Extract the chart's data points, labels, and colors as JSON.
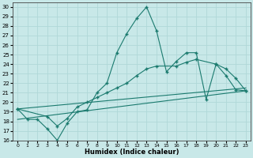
{
  "xlabel": "Humidex (Indice chaleur)",
  "xlim": [
    -0.5,
    23.5
  ],
  "ylim": [
    16,
    30.5
  ],
  "xticks": [
    0,
    1,
    2,
    3,
    4,
    5,
    6,
    7,
    8,
    9,
    10,
    11,
    12,
    13,
    14,
    15,
    16,
    17,
    18,
    19,
    20,
    21,
    22,
    23
  ],
  "yticks": [
    16,
    17,
    18,
    19,
    20,
    21,
    22,
    23,
    24,
    25,
    26,
    27,
    28,
    29,
    30
  ],
  "bg_color": "#c8e8e8",
  "line_color": "#1a7a6e",
  "grid_color": "#b0d8d8",
  "curve1_x": [
    0,
    1,
    2,
    3,
    4,
    5,
    6,
    7,
    8,
    9,
    10,
    11,
    12,
    13,
    14,
    15,
    16,
    17,
    18,
    19,
    20,
    21,
    22,
    23
  ],
  "curve1_y": [
    19.3,
    18.2,
    18.2,
    17.2,
    16.0,
    17.8,
    19.0,
    19.2,
    21.0,
    22.0,
    25.2,
    27.2,
    28.8,
    30.0,
    27.5,
    23.2,
    24.3,
    25.2,
    25.2,
    20.3,
    24.0,
    22.8,
    21.3,
    21.2
  ],
  "curve2_x": [
    0,
    3,
    4,
    5,
    6,
    7,
    8,
    9,
    10,
    11,
    12,
    13,
    14,
    16,
    17,
    18,
    20,
    21,
    22,
    23
  ],
  "curve2_y": [
    19.3,
    18.5,
    17.5,
    18.3,
    19.5,
    20.0,
    20.5,
    21.0,
    21.5,
    22.0,
    22.8,
    23.5,
    23.8,
    23.8,
    24.2,
    24.5,
    24.0,
    23.5,
    22.5,
    21.2
  ],
  "line1_x": [
    0,
    23
  ],
  "line1_y": [
    18.2,
    21.2
  ],
  "line2_x": [
    0,
    23
  ],
  "line2_y": [
    19.3,
    21.5
  ]
}
